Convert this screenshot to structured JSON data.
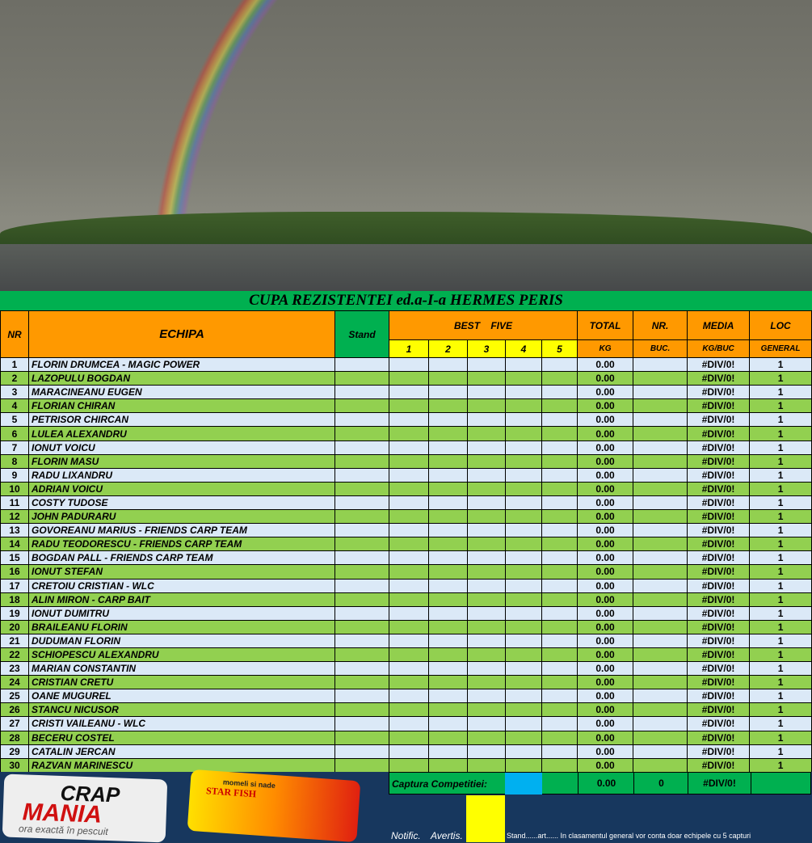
{
  "title": "CUPA REZISTENTEI ed.a-I-a HERMES PERIS",
  "headers": {
    "nr": "NR",
    "echipa": "ECHIPA",
    "stand": "Stand",
    "best": "BEST    FIVE",
    "b": [
      "1",
      "2",
      "3",
      "4",
      "5"
    ],
    "total": "TOTAL",
    "kg": "KG",
    "nrh": "NR.",
    "buc": "BUC.",
    "media": "MEDIA",
    "kgbuc": "KG/BUC",
    "loc": "LOC",
    "general": "GENERAL"
  },
  "teams": [
    "FLORIN DRUMCEA - MAGIC POWER",
    "LAZOPULU BOGDAN",
    "MARACINEANU EUGEN",
    "FLORIAN CHIRAN",
    "PETRISOR CHIRCAN",
    "LULEA ALEXANDRU",
    "IONUT VOICU",
    "FLORIN MASU",
    "RADU LIXANDRU",
    "ADRIAN VOICU",
    "COSTY TUDOSE",
    "JOHN  PADURARU",
    "GOVOREANU MARIUS - FRIENDS CARP TEAM",
    "RADU TEODORESCU - FRIENDS CARP TEAM",
    "BOGDAN PALL - FRIENDS CARP TEAM",
    "IONUT STEFAN",
    "CRETOIU CRISTIAN - WLC",
    "ALIN MIRON - CARP BAIT",
    "IONUT DUMITRU",
    "BRAILEANU FLORIN",
    "DUDUMAN FLORIN",
    "SCHIOPESCU ALEXANDRU",
    "MARIAN CONSTANTIN",
    "CRISTIAN CRETU",
    "OANE MUGUREL",
    "STANCU NICUSOR",
    "CRISTI VAILEANU - WLC",
    "BECERU COSTEL",
    "CATALIN JERCAN",
    "RAZVAN MARINESCU"
  ],
  "row_values": {
    "total": "0.00",
    "media": "#DIV/0!",
    "loc": "1"
  },
  "footer": {
    "captura_label": "Captura Competitiei:",
    "total": "0.00",
    "nr": "0",
    "media": "#DIV/0!",
    "notific": "Notific.",
    "avertis": "Avertis.",
    "note": "Stand......art...... In clasamentul general vor conta doar echipele cu 5 capturi"
  },
  "logos": {
    "crapmania": "CRAP MANIA ora exactă în pescuit",
    "starfish": "momeli si nade STAR FISH"
  }
}
